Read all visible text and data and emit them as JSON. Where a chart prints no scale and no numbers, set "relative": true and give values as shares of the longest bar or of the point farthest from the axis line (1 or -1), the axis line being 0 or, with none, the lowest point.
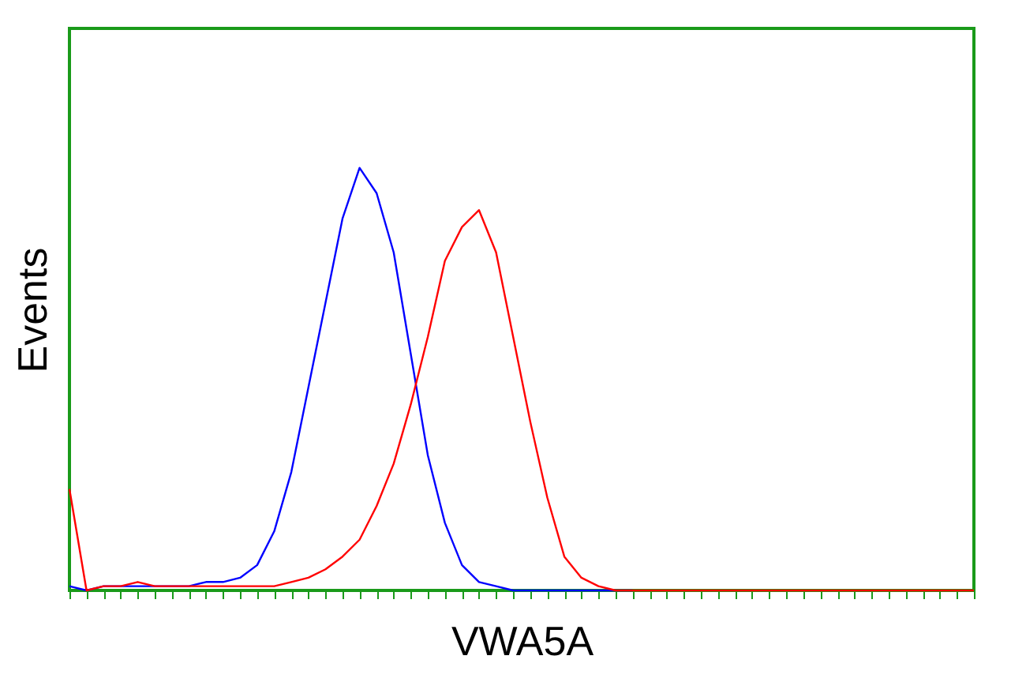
{
  "chart_data": {
    "type": "line",
    "relative": true,
    "xlabel": "VWA5A",
    "ylabel": "Events",
    "categories": [
      null,
      null,
      null,
      null,
      null,
      null,
      null,
      null,
      null,
      null,
      null,
      null,
      null,
      null,
      null,
      null,
      null,
      null,
      null,
      null,
      null,
      null,
      null,
      null,
      null,
      null,
      null,
      null,
      null,
      null,
      null,
      null,
      null,
      null,
      null,
      null,
      null,
      null,
      null,
      null,
      null,
      null,
      null,
      null,
      null,
      null,
      null,
      null,
      null,
      null,
      null,
      null,
      null,
      null
    ],
    "series": [
      {
        "color": "#0000ff",
        "values": [
          0.01,
          0,
          0.01,
          0.01,
          0.01,
          0.01,
          0.01,
          0.01,
          0.02,
          0.02,
          0.03,
          0.06,
          0.14,
          0.28,
          0.48,
          0.68,
          0.88,
          1,
          0.94,
          0.8,
          0.56,
          0.32,
          0.16,
          0.06,
          0.02,
          0.01,
          0,
          0,
          0,
          0,
          0,
          0,
          0,
          0,
          null,
          null,
          null,
          null,
          null,
          null,
          null,
          null,
          null,
          null,
          null,
          null,
          null,
          null,
          null,
          null,
          null,
          null,
          null,
          null
        ]
      },
      {
        "color": "#ff0000",
        "values": [
          0.24,
          0,
          0.01,
          0.01,
          0.02,
          0.01,
          0.01,
          0.01,
          0.01,
          0.01,
          0.01,
          0.01,
          0.01,
          0.02,
          0.03,
          0.05,
          0.08,
          0.12,
          0.2,
          0.3,
          0.44,
          0.6,
          0.78,
          0.86,
          0.9,
          0.8,
          0.6,
          0.4,
          0.22,
          0.08,
          0.03,
          0.01,
          0,
          0,
          0,
          0,
          0,
          0,
          0,
          0,
          0,
          0,
          0,
          0,
          0,
          0,
          0,
          0,
          0,
          0,
          0,
          0,
          0,
          0
        ]
      }
    ],
    "grid": false,
    "legend": false,
    "marker": "none",
    "line_style": "solid"
  }
}
